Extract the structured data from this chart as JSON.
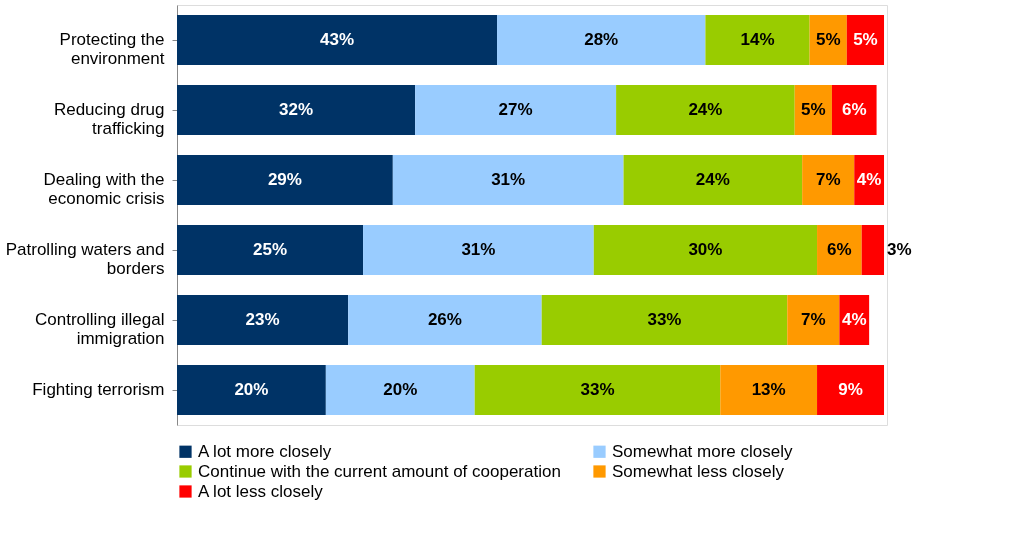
{
  "chart_data": {
    "type": "bar",
    "orientation": "horizontal",
    "stacked": true,
    "legend": "bottom",
    "categories": [
      "Protecting the environment",
      "Reducing drug trafficking",
      "Dealing with the economic crisis",
      "Patrolling waters and borders",
      "Controlling illegal immigration",
      "Fighting terrorism"
    ],
    "series": [
      {
        "name": "A lot more closely",
        "color": "#003366",
        "values": [
          43,
          32,
          29,
          25,
          23,
          20
        ],
        "value_labels": [
          "43%",
          "32%",
          "29%",
          "25%",
          "23%",
          "20%"
        ]
      },
      {
        "name": "Somewhat more closely",
        "color": "#99ccff",
        "values": [
          28,
          27,
          31,
          31,
          26,
          20
        ],
        "value_labels": [
          "28%",
          "27%",
          "31%",
          "31%",
          "26%",
          "20%"
        ]
      },
      {
        "name": "Continue with the current amount of cooperation",
        "color": "#99cc00",
        "values": [
          14,
          24,
          24,
          30,
          33,
          33
        ],
        "value_labels": [
          "14%",
          "24%",
          "24%",
          "30%",
          "33%",
          "33%"
        ]
      },
      {
        "name": "Somewhat less closely",
        "color": "#ff9900",
        "values": [
          5,
          5,
          7,
          6,
          7,
          13
        ],
        "value_labels": [
          "5%",
          "5%",
          "7%",
          "6%",
          "7%",
          "13%"
        ]
      },
      {
        "name": "A lot less closely",
        "color": "#ff0000",
        "values": [
          5,
          6,
          4,
          3,
          4,
          9
        ],
        "value_labels": [
          "5%",
          "6%",
          "4%",
          "3%",
          "4%",
          "9%"
        ]
      }
    ]
  }
}
